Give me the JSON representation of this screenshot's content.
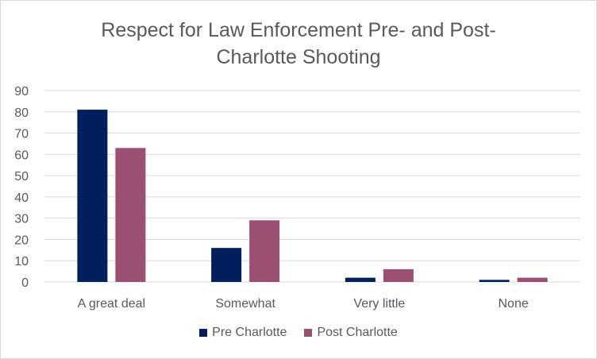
{
  "chart_data": {
    "type": "bar",
    "title_lines": [
      "Respect for Law Enforcement Pre- and Post-",
      "Charlotte Shooting"
    ],
    "categories": [
      "A great deal",
      "Somewhat",
      "Very little",
      "None"
    ],
    "series": [
      {
        "name": "Pre Charlotte",
        "color": "#001f5c",
        "values": [
          81,
          16,
          2,
          1
        ]
      },
      {
        "name": "Post Charlotte",
        "color": "#9b4f73",
        "values": [
          63,
          29,
          6,
          2
        ]
      }
    ],
    "ylim": [
      0,
      90
    ],
    "yticks": [
      0,
      10,
      20,
      30,
      40,
      50,
      60,
      70,
      80,
      90
    ],
    "grid": true,
    "gridColor": "#d9d9d9",
    "legend": "bottom"
  }
}
